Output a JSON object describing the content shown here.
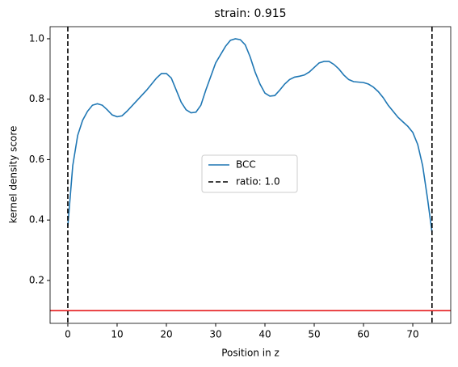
{
  "chart_data": {
    "type": "line",
    "title": "strain: 0.915",
    "x_label": "Position in z",
    "y_label": "kernel density score",
    "series": [
      {
        "name": "BCC",
        "color": "#1f77b4",
        "x": [
          0,
          1,
          2,
          3,
          4,
          5,
          6,
          7,
          8,
          9,
          10,
          11,
          12,
          14,
          16,
          18,
          19,
          20,
          21,
          22,
          23,
          24,
          25,
          26,
          27,
          28,
          30,
          32,
          33,
          34,
          35,
          36,
          37,
          38,
          39,
          40,
          41,
          42,
          43,
          44,
          45,
          46,
          47,
          48,
          49,
          50,
          51,
          52,
          53,
          54,
          55,
          56,
          57,
          58,
          60,
          61,
          62,
          63,
          64,
          65,
          66,
          67,
          68,
          69,
          70,
          71,
          72,
          73,
          73.9
        ],
        "values": [
          0.38,
          0.58,
          0.68,
          0.73,
          0.76,
          0.78,
          0.785,
          0.78,
          0.765,
          0.748,
          0.742,
          0.745,
          0.76,
          0.795,
          0.83,
          0.87,
          0.885,
          0.885,
          0.87,
          0.83,
          0.79,
          0.765,
          0.755,
          0.757,
          0.78,
          0.83,
          0.92,
          0.975,
          0.995,
          1.0,
          0.997,
          0.98,
          0.94,
          0.89,
          0.85,
          0.82,
          0.81,
          0.812,
          0.83,
          0.85,
          0.865,
          0.873,
          0.876,
          0.88,
          0.89,
          0.905,
          0.92,
          0.925,
          0.925,
          0.915,
          0.9,
          0.88,
          0.865,
          0.858,
          0.855,
          0.85,
          0.84,
          0.825,
          0.805,
          0.78,
          0.76,
          0.74,
          0.725,
          0.71,
          0.69,
          0.65,
          0.58,
          0.47,
          0.36
        ]
      }
    ],
    "vlines": {
      "name": "ratio: 1.0",
      "color": "#000000",
      "x": [
        0,
        73.9
      ]
    },
    "hline": {
      "y": 0.1,
      "color": "#e41a1c"
    },
    "xlim": [
      -3.6,
      77.7
    ],
    "ylim": [
      0.058,
      1.04
    ],
    "xticks": [
      0,
      10,
      20,
      30,
      40,
      50,
      60,
      70
    ],
    "yticks": [
      0.2,
      0.4,
      0.6,
      0.8,
      {
        "value": 1,
        "label": "1.0"
      }
    ],
    "legend": "center"
  }
}
